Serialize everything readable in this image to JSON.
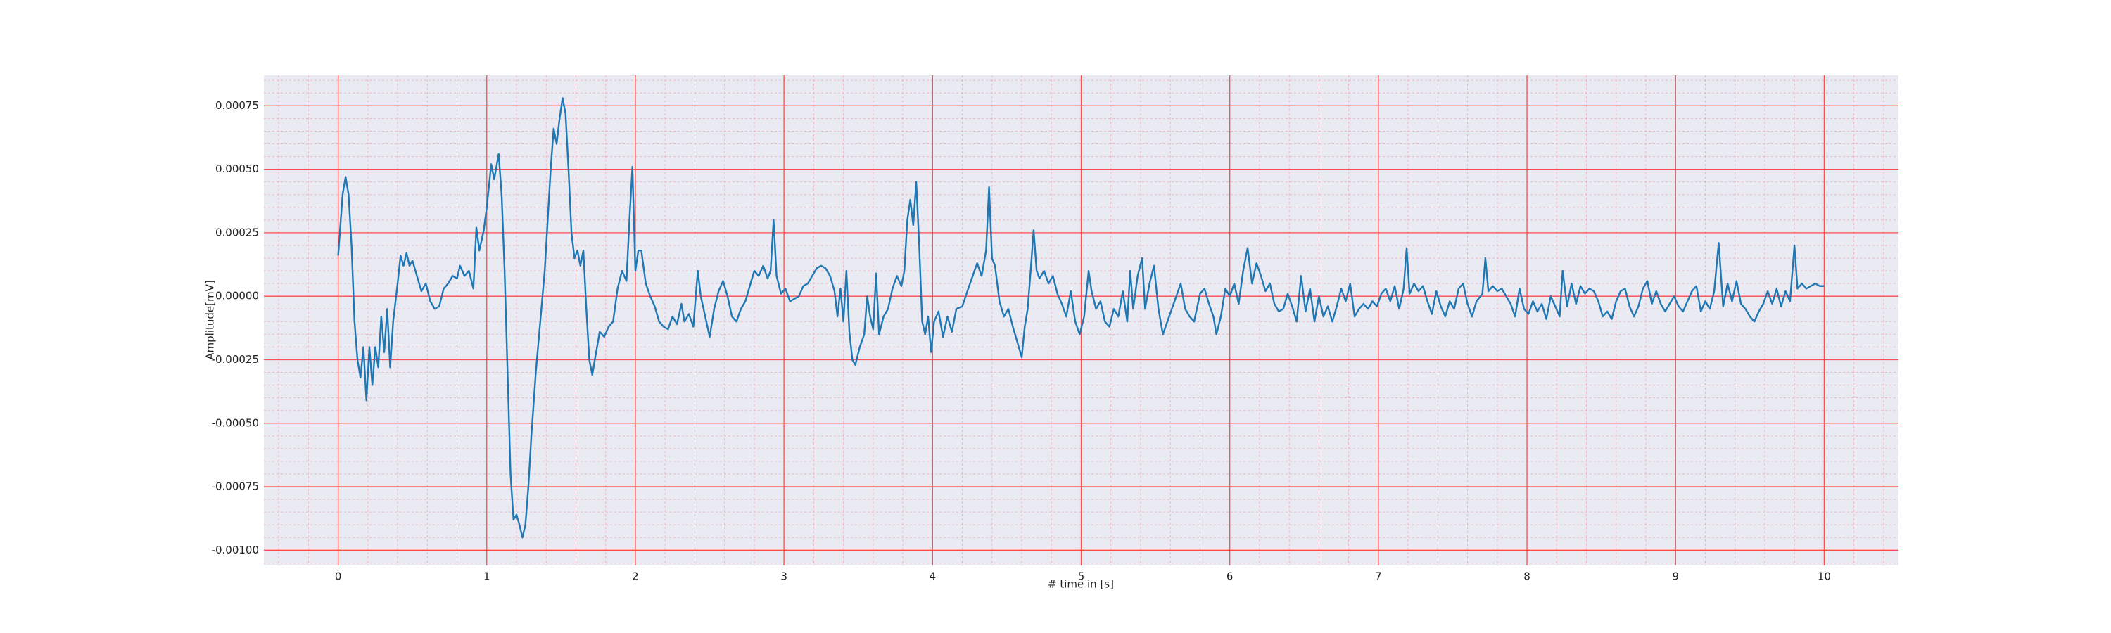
{
  "chart_data": {
    "type": "line",
    "xlabel": "# time in [s]",
    "ylabel": "Amplitude[mV]",
    "color": "#1f77b4",
    "background": "#eaeaf2",
    "grid": true,
    "grid_color": "#ff4d4d",
    "minor_grid": true,
    "minor_grid_color": "#f4a6b8",
    "xlim": [
      -0.5,
      10.5
    ],
    "ylim": [
      -0.00106,
      0.00087
    ],
    "xticks": [
      0,
      1,
      2,
      3,
      4,
      5,
      6,
      7,
      8,
      9,
      10
    ],
    "yticks": [
      -0.00075,
      {
        "value": -0.001,
        "label": "-0.00100"
      },
      {
        "value": -0.0005,
        "label": "-0.00050"
      },
      -0.00025,
      {
        "value": 0,
        "label": "0.00000"
      },
      0.00025,
      {
        "value": 0.0005,
        "label": "0.00050"
      },
      0.00075
    ],
    "x": [
      0,
      0.03,
      0.05,
      0.07,
      0.09,
      0.11,
      0.13,
      0.15,
      0.17,
      0.19,
      0.21,
      0.23,
      0.25,
      0.27,
      0.29,
      0.31,
      0.33,
      0.35,
      0.37,
      0.4,
      0.42,
      0.44,
      0.46,
      0.48,
      0.5,
      0.53,
      0.56,
      0.59,
      0.62,
      0.65,
      0.68,
      0.71,
      0.74,
      0.77,
      0.8,
      0.82,
      0.85,
      0.88,
      0.91,
      0.93,
      0.95,
      0.98,
      1.0,
      1.03,
      1.05,
      1.08,
      1.1,
      1.12,
      1.14,
      1.16,
      1.18,
      1.2,
      1.22,
      1.24,
      1.26,
      1.28,
      1.3,
      1.33,
      1.36,
      1.39,
      1.41,
      1.43,
      1.45,
      1.47,
      1.49,
      1.51,
      1.53,
      1.55,
      1.57,
      1.59,
      1.61,
      1.63,
      1.65,
      1.67,
      1.69,
      1.71,
      1.73,
      1.76,
      1.79,
      1.82,
      1.85,
      1.88,
      1.91,
      1.94,
      1.96,
      1.98,
      2.0,
      2.02,
      2.04,
      2.07,
      2.1,
      2.13,
      2.16,
      2.19,
      2.22,
      2.25,
      2.28,
      2.31,
      2.33,
      2.36,
      2.39,
      2.42,
      2.44,
      2.47,
      2.5,
      2.53,
      2.56,
      2.59,
      2.62,
      2.65,
      2.68,
      2.71,
      2.74,
      2.77,
      2.8,
      2.83,
      2.86,
      2.89,
      2.91,
      2.93,
      2.95,
      2.98,
      3.01,
      3.04,
      3.07,
      3.1,
      3.13,
      3.16,
      3.19,
      3.22,
      3.25,
      3.28,
      3.31,
      3.34,
      3.36,
      3.38,
      3.4,
      3.42,
      3.44,
      3.46,
      3.48,
      3.51,
      3.54,
      3.56,
      3.58,
      3.6,
      3.62,
      3.64,
      3.67,
      3.7,
      3.73,
      3.76,
      3.79,
      3.81,
      3.83,
      3.85,
      3.87,
      3.89,
      3.91,
      3.93,
      3.95,
      3.97,
      3.99,
      4.01,
      4.04,
      4.07,
      4.1,
      4.13,
      4.16,
      4.2,
      4.24,
      4.27,
      4.3,
      4.33,
      4.36,
      4.38,
      4.4,
      4.42,
      4.45,
      4.48,
      4.51,
      4.54,
      4.57,
      4.6,
      4.62,
      4.64,
      4.66,
      4.68,
      4.7,
      4.72,
      4.75,
      4.78,
      4.81,
      4.84,
      4.87,
      4.9,
      4.93,
      4.96,
      4.99,
      5.02,
      5.05,
      5.07,
      5.1,
      5.13,
      5.16,
      5.19,
      5.22,
      5.25,
      5.28,
      5.31,
      5.33,
      5.35,
      5.38,
      5.41,
      5.43,
      5.46,
      5.49,
      5.52,
      5.55,
      5.58,
      5.61,
      5.64,
      5.67,
      5.7,
      5.73,
      5.76,
      5.8,
      5.83,
      5.86,
      5.89,
      5.91,
      5.94,
      5.97,
      6.0,
      6.03,
      6.06,
      6.09,
      6.12,
      6.15,
      6.18,
      6.21,
      6.24,
      6.27,
      6.3,
      6.33,
      6.36,
      6.39,
      6.42,
      6.45,
      6.48,
      6.51,
      6.54,
      6.57,
      6.6,
      6.63,
      6.66,
      6.69,
      6.72,
      6.75,
      6.78,
      6.81,
      6.84,
      6.87,
      6.9,
      6.93,
      6.96,
      6.99,
      7.02,
      7.05,
      7.08,
      7.11,
      7.14,
      7.17,
      7.19,
      7.21,
      7.24,
      7.27,
      7.3,
      7.33,
      7.36,
      7.39,
      7.42,
      7.45,
      7.48,
      7.51,
      7.54,
      7.57,
      7.6,
      7.63,
      7.66,
      7.7,
      7.72,
      7.74,
      7.77,
      7.8,
      7.83,
      7.86,
      7.89,
      7.92,
      7.95,
      7.98,
      8.01,
      8.04,
      8.07,
      8.1,
      8.13,
      8.16,
      8.19,
      8.22,
      8.24,
      8.27,
      8.3,
      8.33,
      8.36,
      8.39,
      8.42,
      8.45,
      8.48,
      8.51,
      8.54,
      8.57,
      8.6,
      8.63,
      8.66,
      8.69,
      8.72,
      8.75,
      8.78,
      8.81,
      8.84,
      8.87,
      8.9,
      8.93,
      8.96,
      8.99,
      9.02,
      9.05,
      9.08,
      9.11,
      9.14,
      9.17,
      9.2,
      9.23,
      9.26,
      9.29,
      9.32,
      9.35,
      9.38,
      9.41,
      9.44,
      9.47,
      9.5,
      9.53,
      9.56,
      9.59,
      9.62,
      9.65,
      9.68,
      9.71,
      9.74,
      9.77,
      9.8,
      9.82,
      9.85,
      9.88,
      9.91,
      9.94,
      9.97,
      10.0
    ],
    "values": [
      0.00016,
      0.0004,
      0.00047,
      0.0004,
      0.0002,
      -0.0001,
      -0.00025,
      -0.00032,
      -0.0002,
      -0.00041,
      -0.0002,
      -0.00035,
      -0.0002,
      -0.00028,
      -8e-05,
      -0.00022,
      -5e-05,
      -0.00028,
      -0.0001,
      5e-05,
      0.00016,
      0.00012,
      0.00017,
      0.00012,
      0.00014,
      8e-05,
      2e-05,
      5e-05,
      -2e-05,
      -5e-05,
      -4e-05,
      3e-05,
      5e-05,
      8e-05,
      7e-05,
      0.00012,
      8e-05,
      0.0001,
      3e-05,
      0.00027,
      0.00018,
      0.00026,
      0.00035,
      0.00052,
      0.00046,
      0.00056,
      0.0004,
      0.0001,
      -0.0003,
      -0.0007,
      -0.00088,
      -0.00086,
      -0.0009,
      -0.00095,
      -0.0009,
      -0.00075,
      -0.00055,
      -0.0003,
      -0.0001,
      0.0001,
      0.0003,
      0.0005,
      0.00066,
      0.0006,
      0.0007,
      0.00078,
      0.00072,
      0.0005,
      0.00025,
      0.00015,
      0.00018,
      0.00012,
      0.00018,
      -5e-05,
      -0.00025,
      -0.00031,
      -0.00024,
      -0.00014,
      -0.00016,
      -0.00012,
      -0.0001,
      3e-05,
      0.0001,
      6e-05,
      0.0003,
      0.00051,
      0.0001,
      0.00018,
      0.00018,
      5e-05,
      0,
      -4e-05,
      -0.0001,
      -0.00012,
      -0.00013,
      -8e-05,
      -0.00011,
      -3e-05,
      -0.0001,
      -7e-05,
      -0.00012,
      0.0001,
      0,
      -8e-05,
      -0.00016,
      -5e-05,
      2e-05,
      6e-05,
      0,
      -8e-05,
      -0.0001,
      -5e-05,
      -2e-05,
      4e-05,
      0.0001,
      8e-05,
      0.00012,
      7e-05,
      0.0001,
      0.0003,
      8e-05,
      1e-05,
      3e-05,
      -2e-05,
      -1e-05,
      0,
      4e-05,
      5e-05,
      8e-05,
      0.00011,
      0.00012,
      0.00011,
      8e-05,
      2e-05,
      -8e-05,
      3e-05,
      -0.0001,
      0.0001,
      -0.00014,
      -0.00025,
      -0.00027,
      -0.0002,
      -0.00015,
      0,
      -8e-05,
      -0.00013,
      9e-05,
      -0.00015,
      -8e-05,
      -5e-05,
      3e-05,
      8e-05,
      4e-05,
      0.0001,
      0.0003,
      0.00038,
      0.00028,
      0.00045,
      0.0002,
      -0.0001,
      -0.00015,
      -8e-05,
      -0.00022,
      -0.0001,
      -6e-05,
      -0.00016,
      -8e-05,
      -0.00014,
      -5e-05,
      -4e-05,
      3e-05,
      8e-05,
      0.00013,
      8e-05,
      0.00018,
      0.00043,
      0.00015,
      0.00012,
      -2e-05,
      -8e-05,
      -5e-05,
      -0.00012,
      -0.00018,
      -0.00024,
      -0.00012,
      -5e-05,
      0.0001,
      0.00026,
      0.0001,
      7e-05,
      0.0001,
      5e-05,
      8e-05,
      1e-05,
      -3e-05,
      -8e-05,
      2e-05,
      -0.0001,
      -0.00015,
      -8e-05,
      0.0001,
      2e-05,
      -5e-05,
      -2e-05,
      -0.0001,
      -0.00012,
      -5e-05,
      -8e-05,
      2e-05,
      -0.0001,
      0.0001,
      -5e-05,
      8e-05,
      0.00015,
      -5e-05,
      5e-05,
      0.00012,
      -5e-05,
      -0.00015,
      -0.0001,
      -5e-05,
      0,
      5e-05,
      -5e-05,
      -8e-05,
      -0.0001,
      1e-05,
      3e-05,
      -3e-05,
      -8e-05,
      -0.00015,
      -8e-05,
      3e-05,
      0,
      5e-05,
      -3e-05,
      0.0001,
      0.00019,
      5e-05,
      0.00013,
      8e-05,
      2e-05,
      5e-05,
      -3e-05,
      -6e-05,
      -5e-05,
      1e-05,
      -4e-05,
      -0.0001,
      8e-05,
      -6e-05,
      3e-05,
      -0.0001,
      0,
      -8e-05,
      -4e-05,
      -0.0001,
      -4e-05,
      3e-05,
      -2e-05,
      5e-05,
      -8e-05,
      -5e-05,
      -3e-05,
      -5e-05,
      -2e-05,
      -4e-05,
      1e-05,
      3e-05,
      -2e-05,
      4e-05,
      -5e-05,
      3e-05,
      0.00019,
      1e-05,
      5e-05,
      2e-05,
      4e-05,
      -2e-05,
      -7e-05,
      2e-05,
      -4e-05,
      -8e-05,
      -2e-05,
      -5e-05,
      3e-05,
      5e-05,
      -3e-05,
      -8e-05,
      -2e-05,
      1e-05,
      0.00015,
      2e-05,
      4e-05,
      2e-05,
      3e-05,
      0,
      -3e-05,
      -8e-05,
      3e-05,
      -5e-05,
      -7e-05,
      -2e-05,
      -6e-05,
      -3e-05,
      -9e-05,
      0,
      -4e-05,
      -8e-05,
      0.0001,
      -4e-05,
      5e-05,
      -3e-05,
      4e-05,
      1e-05,
      3e-05,
      2e-05,
      -2e-05,
      -8e-05,
      -6e-05,
      -9e-05,
      -2e-05,
      2e-05,
      3e-05,
      -4e-05,
      -8e-05,
      -4e-05,
      3e-05,
      6e-05,
      -3e-05,
      2e-05,
      -3e-05,
      -6e-05,
      -3e-05,
      0,
      -4e-05,
      -6e-05,
      -2e-05,
      2e-05,
      4e-05,
      -6e-05,
      -2e-05,
      -5e-05,
      2e-05,
      0.00021,
      -4e-05,
      5e-05,
      -2e-05,
      6e-05,
      -3e-05,
      -5e-05,
      -8e-05,
      -0.0001,
      -6e-05,
      -3e-05,
      2e-05,
      -3e-05,
      3e-05,
      -4e-05,
      2e-05,
      -2e-05,
      0.0002,
      3e-05,
      5e-05,
      3e-05,
      4e-05,
      5e-05,
      4e-05,
      4e-05
    ]
  }
}
